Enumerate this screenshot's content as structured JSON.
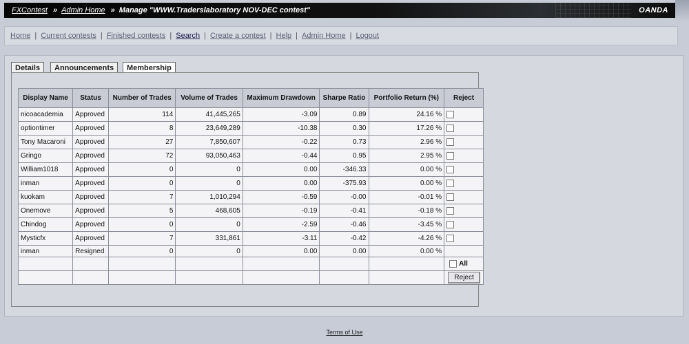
{
  "header": {
    "crumb1": "FXContest",
    "crumb2": "Admin Home",
    "current": "Manage \"WWW.Traderslaboratory NOV-DEC contest\"",
    "separator": "»",
    "brand": "OANDA"
  },
  "nav": {
    "items": [
      "Home",
      "Current contests",
      "Finished contests",
      "Search",
      "Create a contest",
      "Help",
      "Admin Home",
      "Logout"
    ],
    "pipe": "|"
  },
  "tabs": [
    "Details",
    "Announcements",
    "Membership"
  ],
  "table": {
    "headers": [
      "Display Name",
      "Status",
      "Number of Trades",
      "Volume of Trades",
      "Maximum Drawdown",
      "Sharpe Ratio",
      "Portfolio Return (%)",
      "Reject"
    ],
    "rows": [
      {
        "name": "nicoacademia",
        "status": "Approved",
        "trades": "114",
        "volume": "41,445,265",
        "drawdown": "-3.09",
        "sharpe": "0.89",
        "ret": "24.16 %"
      },
      {
        "name": "optiontimer",
        "status": "Approved",
        "trades": "8",
        "volume": "23,649,289",
        "drawdown": "-10.38",
        "sharpe": "0.30",
        "ret": "17.26 %"
      },
      {
        "name": "Tony Macaroni",
        "status": "Approved",
        "trades": "27",
        "volume": "7,850,607",
        "drawdown": "-0.22",
        "sharpe": "0.73",
        "ret": "2.96 %"
      },
      {
        "name": "Gringo",
        "status": "Approved",
        "trades": "72",
        "volume": "93,050,463",
        "drawdown": "-0.44",
        "sharpe": "0.95",
        "ret": "2.95 %"
      },
      {
        "name": "William1018",
        "status": "Approved",
        "trades": "0",
        "volume": "0",
        "drawdown": "0.00",
        "sharpe": "-346.33",
        "ret": "0.00 %"
      },
      {
        "name": "inman",
        "status": "Approved",
        "trades": "0",
        "volume": "0",
        "drawdown": "0.00",
        "sharpe": "-375.93",
        "ret": "0.00 %"
      },
      {
        "name": "kuokam",
        "status": "Approved",
        "trades": "7",
        "volume": "1,010,294",
        "drawdown": "-0.59",
        "sharpe": "-0.00",
        "ret": "-0.01 %"
      },
      {
        "name": "Onemove",
        "status": "Approved",
        "trades": "5",
        "volume": "468,605",
        "drawdown": "-0.19",
        "sharpe": "-0.41",
        "ret": "-0.18 %"
      },
      {
        "name": "Chindog",
        "status": "Approved",
        "trades": "0",
        "volume": "0",
        "drawdown": "-2.59",
        "sharpe": "-0.46",
        "ret": "-3.45 %"
      },
      {
        "name": "Mysticfx",
        "status": "Approved",
        "trades": "7",
        "volume": "331,861",
        "drawdown": "-3.11",
        "sharpe": "-0.42",
        "ret": "-4.26 %"
      }
    ],
    "resigned": {
      "name": "inman",
      "status": "Resigned",
      "trades": "0",
      "volume": "0",
      "drawdown": "0.00",
      "sharpe": "0.00",
      "ret": "0.00 %"
    },
    "all_label": "All",
    "reject_button": "Reject"
  },
  "footer": {
    "terms": "Terms of Use"
  }
}
